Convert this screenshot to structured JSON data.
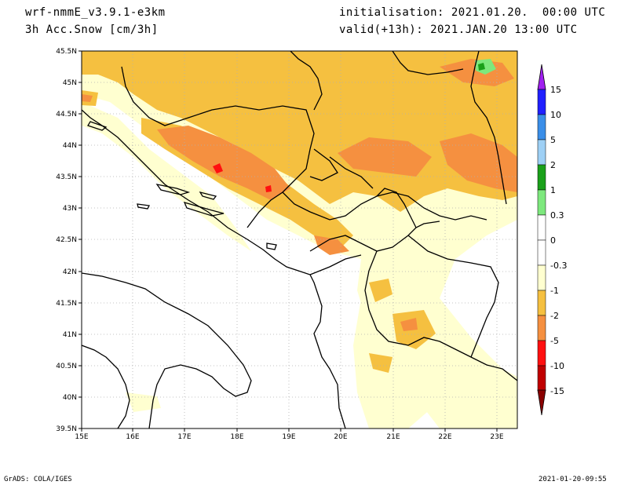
{
  "header": {
    "model": "wrf-nmmE_v3.9.1-e3km",
    "variable": "3h Acc.Snow [cm/3h]",
    "initialisation": "initialisation: 2021.01.20.  00:00 UTC",
    "valid": "valid(+13h): 2021.JAN.20 13:00 UTC"
  },
  "map": {
    "lon_labels": [
      "15E",
      "16E",
      "17E",
      "18E",
      "19E",
      "20E",
      "21E",
      "22E",
      "23E"
    ],
    "lat_labels": [
      "39.5N",
      "40N",
      "40.5N",
      "41N",
      "41.5N",
      "42N",
      "42.5N",
      "43N",
      "43.5N",
      "44N",
      "44.5N",
      "45N",
      "45.5N"
    ],
    "grid": "dotted"
  },
  "colorbar": {
    "labels": [
      "15",
      "10",
      "5",
      "2",
      "1",
      "0.3",
      "0",
      "-0.3",
      "-1",
      "-2",
      "-5",
      "-10",
      "-15"
    ],
    "colors": [
      "#2020ff",
      "#3a8ee8",
      "#9ed0f5",
      "#1aa01a",
      "#7de87d",
      "#ffffff",
      "#ffffff",
      "#ffffd0",
      "#f5c040",
      "#f59040",
      "#ff1010",
      "#c00000",
      "#8a0000"
    ],
    "top_arrow_color": "#a020f0",
    "bottom_arrow_color": "#8a0000"
  },
  "footer": {
    "software": "GrADS: COLA/IGES",
    "timestamp": "2021-01-20-09:55"
  }
}
